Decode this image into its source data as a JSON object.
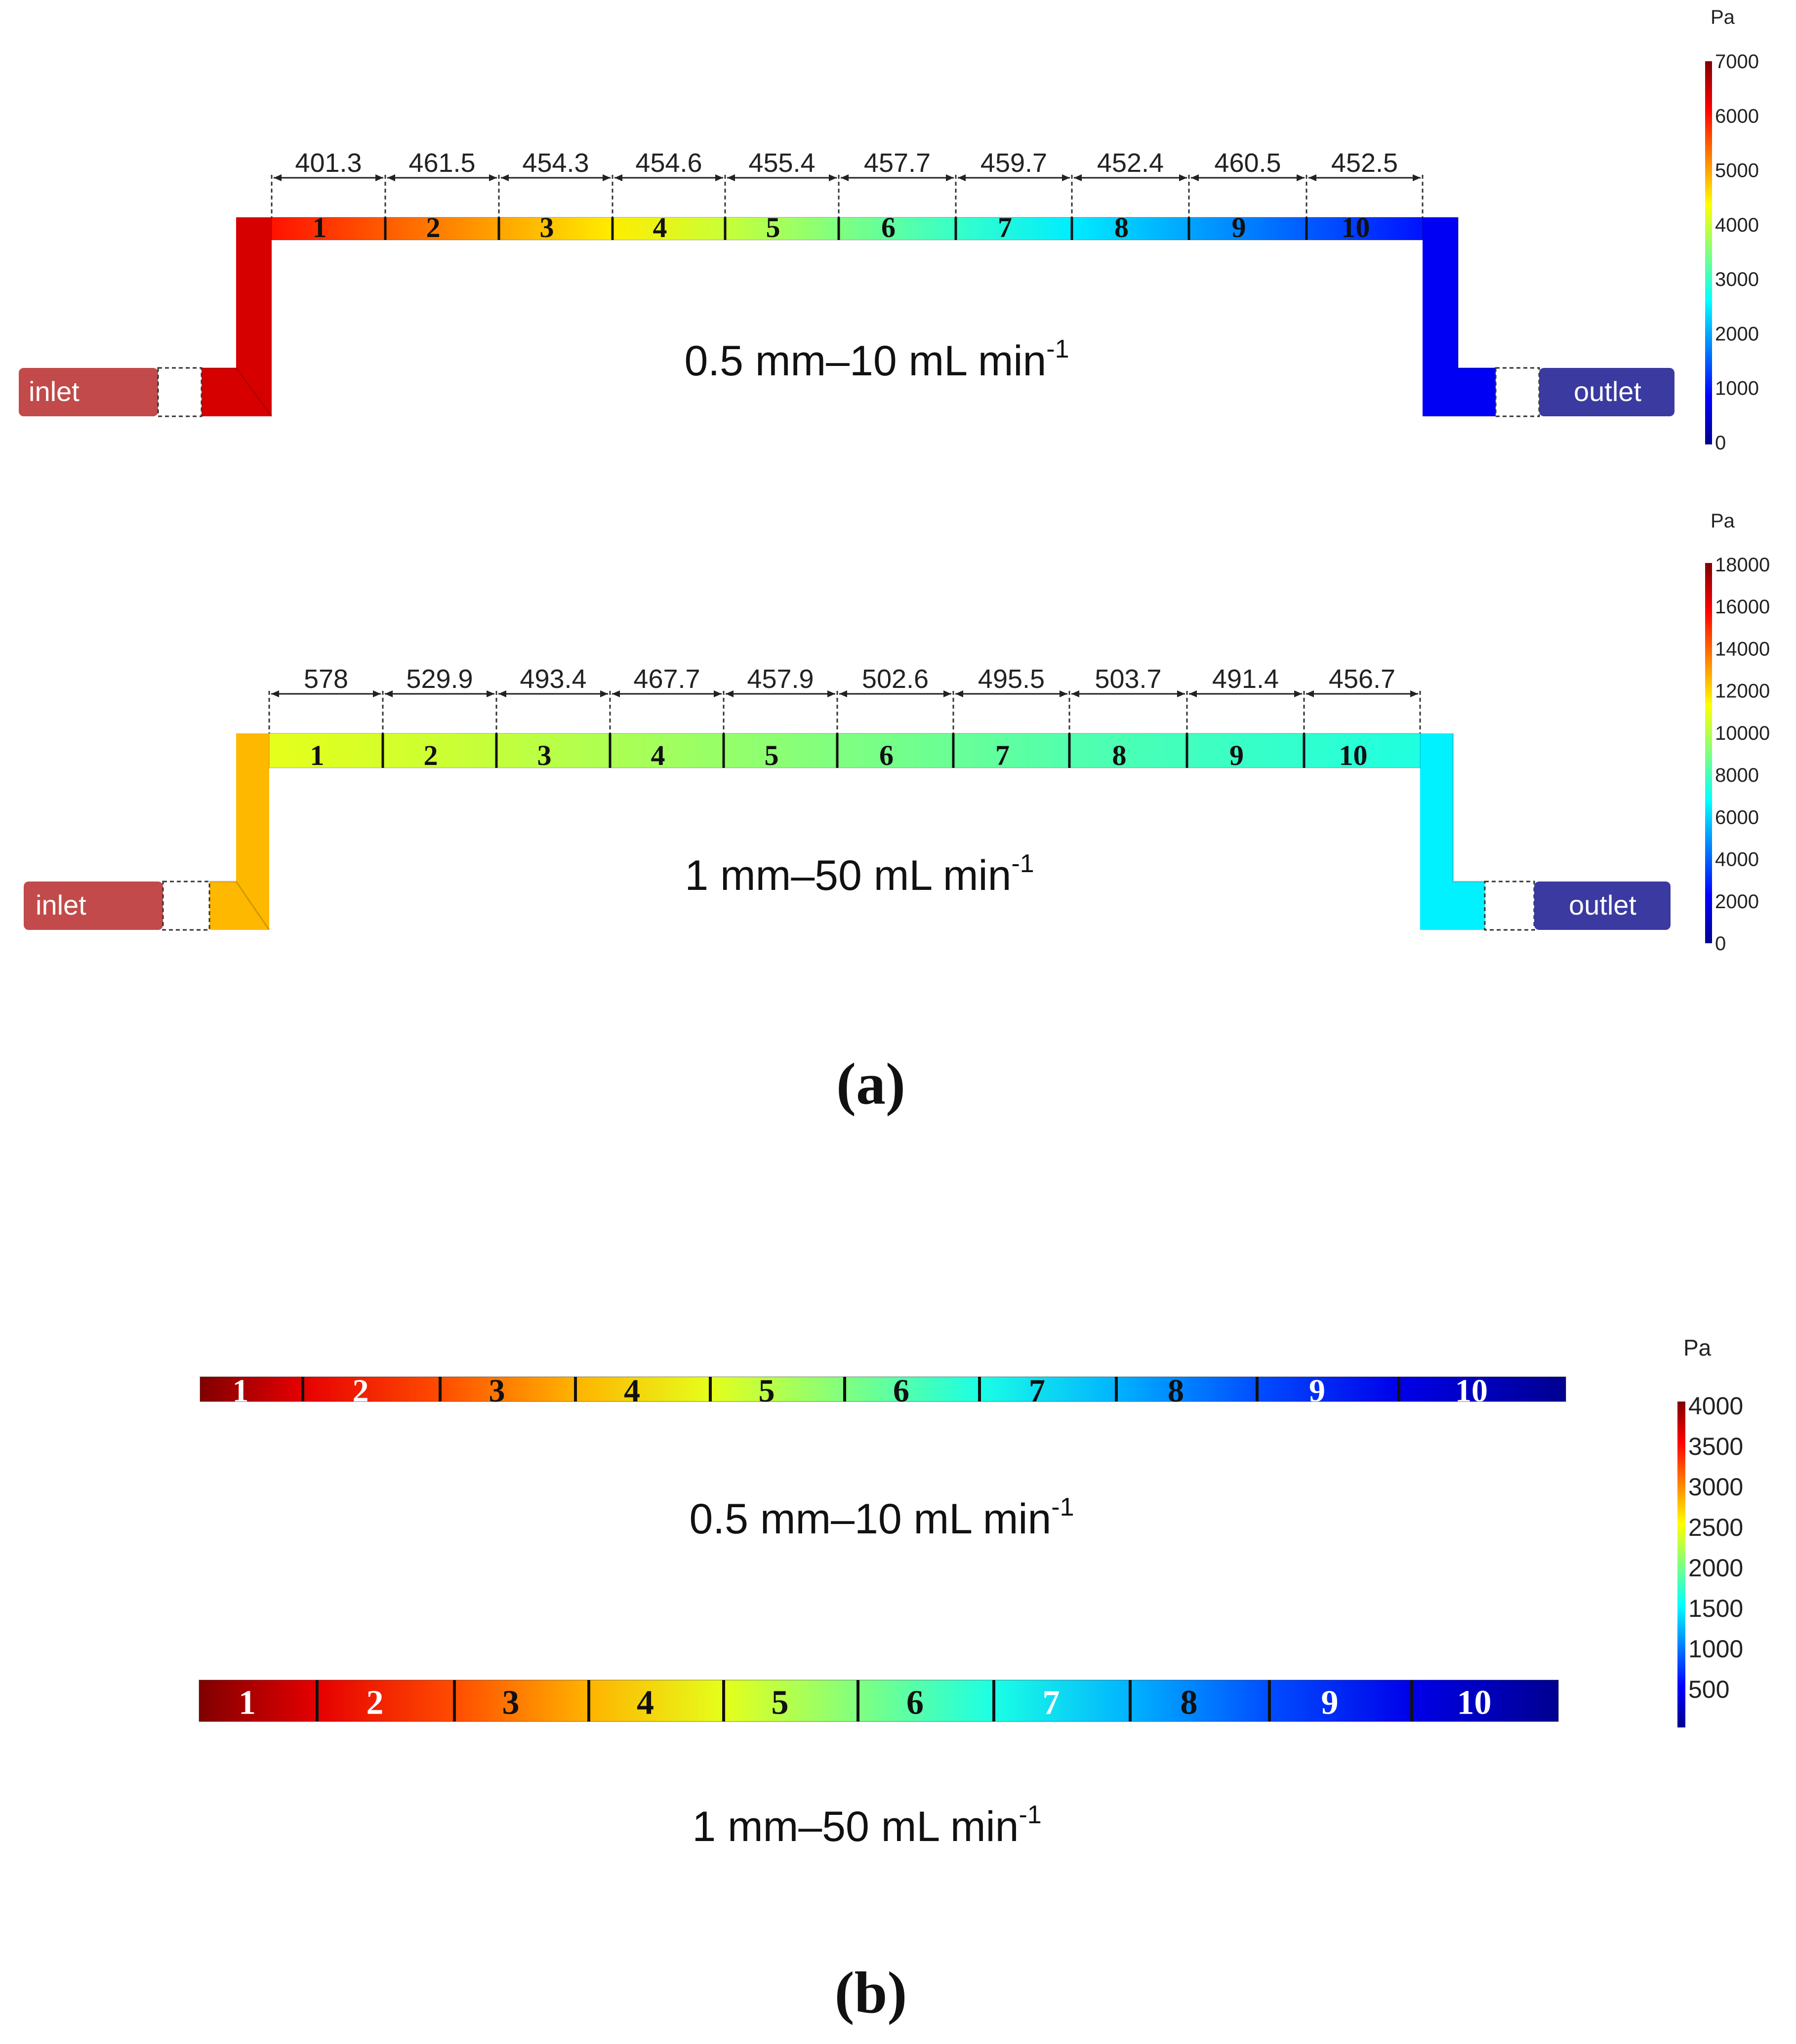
{
  "colors": {
    "inlet": "#c24a4a",
    "outlet": "#3a3aa0",
    "dim_line": "#222222",
    "divider": "#111111",
    "jet": [
      "#00008f",
      "#0000ff",
      "#00ffff",
      "#ffff00",
      "#ff0000",
      "#800000"
    ]
  },
  "panel_a": {
    "label": "(a)",
    "top": {
      "caption_main": "0.5 mm–10 mL min",
      "caption_sup": "-1",
      "inlet_label": "inlet",
      "outlet_label": "outlet",
      "segments": [
        "1",
        "2",
        "3",
        "4",
        "5",
        "6",
        "7",
        "8",
        "9",
        "10"
      ],
      "pressure_drops": [
        "401.3",
        "461.5",
        "454.3",
        "454.6",
        "455.4",
        "457.7",
        "459.7",
        "452.4",
        "460.5",
        "452.5"
      ],
      "colorbar": {
        "unit": "Pa",
        "min": 0,
        "max": 7000,
        "ticks": [
          "7000",
          "6000",
          "5000",
          "4000",
          "3000",
          "2000",
          "1000",
          "0"
        ]
      },
      "inlet_riser_pressure": 6400,
      "outlet_riser_pressure": 800,
      "segment_pressures": [
        6000,
        5500,
        5000,
        4500,
        4000,
        3500,
        3000,
        2500,
        2000,
        1500,
        1000
      ]
    },
    "bottom": {
      "caption_main": "1 mm–50 mL min",
      "caption_sup": "-1",
      "inlet_label": "inlet",
      "outlet_label": "outlet",
      "segments": [
        "1",
        "2",
        "3",
        "4",
        "5",
        "6",
        "7",
        "8",
        "9",
        "10"
      ],
      "pressure_drops": [
        "578",
        "529.9",
        "493.4",
        "467.7",
        "457.9",
        "502.6",
        "495.5",
        "503.7",
        "491.4",
        "456.7"
      ],
      "colorbar": {
        "unit": "Pa",
        "min": 0,
        "max": 18000,
        "ticks": [
          "18000",
          "16000",
          "14000",
          "12000",
          "10000",
          "8000",
          "6000",
          "4000",
          "2000",
          "0"
        ]
      },
      "inlet_riser_pressure": 12500,
      "outlet_riser_pressure": 6500,
      "segment_pressures": [
        10800,
        10500,
        10200,
        9800,
        9400,
        9000,
        8600,
        8200,
        7900,
        7600,
        7300
      ]
    }
  },
  "panel_b": {
    "label": "(b)",
    "colorbar": {
      "unit": "Pa",
      "min": 0,
      "max": 4000,
      "ticks": [
        "4000",
        "3500",
        "3000",
        "2500",
        "2000",
        "1500",
        "1000",
        "500"
      ]
    },
    "top": {
      "caption_main": "0.5 mm–10 mL min",
      "caption_sup": "-1",
      "segments": [
        "1",
        "2",
        "3",
        "4",
        "5",
        "6",
        "7",
        "8",
        "9",
        "10"
      ],
      "segment_pressures": [
        4000,
        3600,
        3200,
        2800,
        2400,
        2000,
        1600,
        1200,
        800,
        400,
        0
      ]
    },
    "bottom": {
      "caption_main": "1 mm–50 mL min",
      "caption_sup": "-1",
      "segments": [
        "1",
        "2",
        "3",
        "4",
        "5",
        "6",
        "7",
        "8",
        "9",
        "10"
      ],
      "segment_pressures": [
        4000,
        3600,
        3200,
        2800,
        2400,
        2000,
        1600,
        1200,
        800,
        400,
        0
      ]
    }
  }
}
